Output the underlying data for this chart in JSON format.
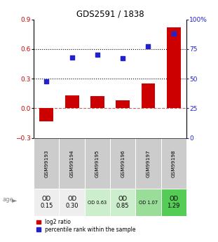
{
  "title": "GDS2591 / 1838",
  "samples": [
    "GSM99193",
    "GSM99194",
    "GSM99195",
    "GSM99196",
    "GSM99197",
    "GSM99198"
  ],
  "log2_ratio": [
    -0.13,
    0.13,
    0.12,
    0.08,
    0.25,
    0.82
  ],
  "percentile_rank": [
    48,
    68,
    70,
    67,
    77,
    88
  ],
  "bar_color": "#cc0000",
  "dot_color": "#2222cc",
  "ylim_left": [
    -0.3,
    0.9
  ],
  "ylim_right": [
    0,
    100
  ],
  "yticks_left": [
    -0.3,
    0.0,
    0.3,
    0.6,
    0.9
  ],
  "yticks_right": [
    0,
    25,
    50,
    75,
    100
  ],
  "hline_y": [
    0.3,
    0.6
  ],
  "zero_line_y": 0.0,
  "age_labels": [
    "OD\n0.15",
    "OD\n0.30",
    "OD 0.63",
    "OD\n0.85",
    "OD 1.07",
    "OD\n1.29"
  ],
  "age_bg_colors": [
    "#eeeeee",
    "#eeeeee",
    "#cceecc",
    "#cceecc",
    "#99dd99",
    "#55cc55"
  ],
  "age_fontsize_large": [
    true,
    true,
    false,
    true,
    false,
    true
  ],
  "sample_bg_color": "#cccccc",
  "legend_red_label": "log2 ratio",
  "legend_blue_label": "percentile rank within the sample"
}
